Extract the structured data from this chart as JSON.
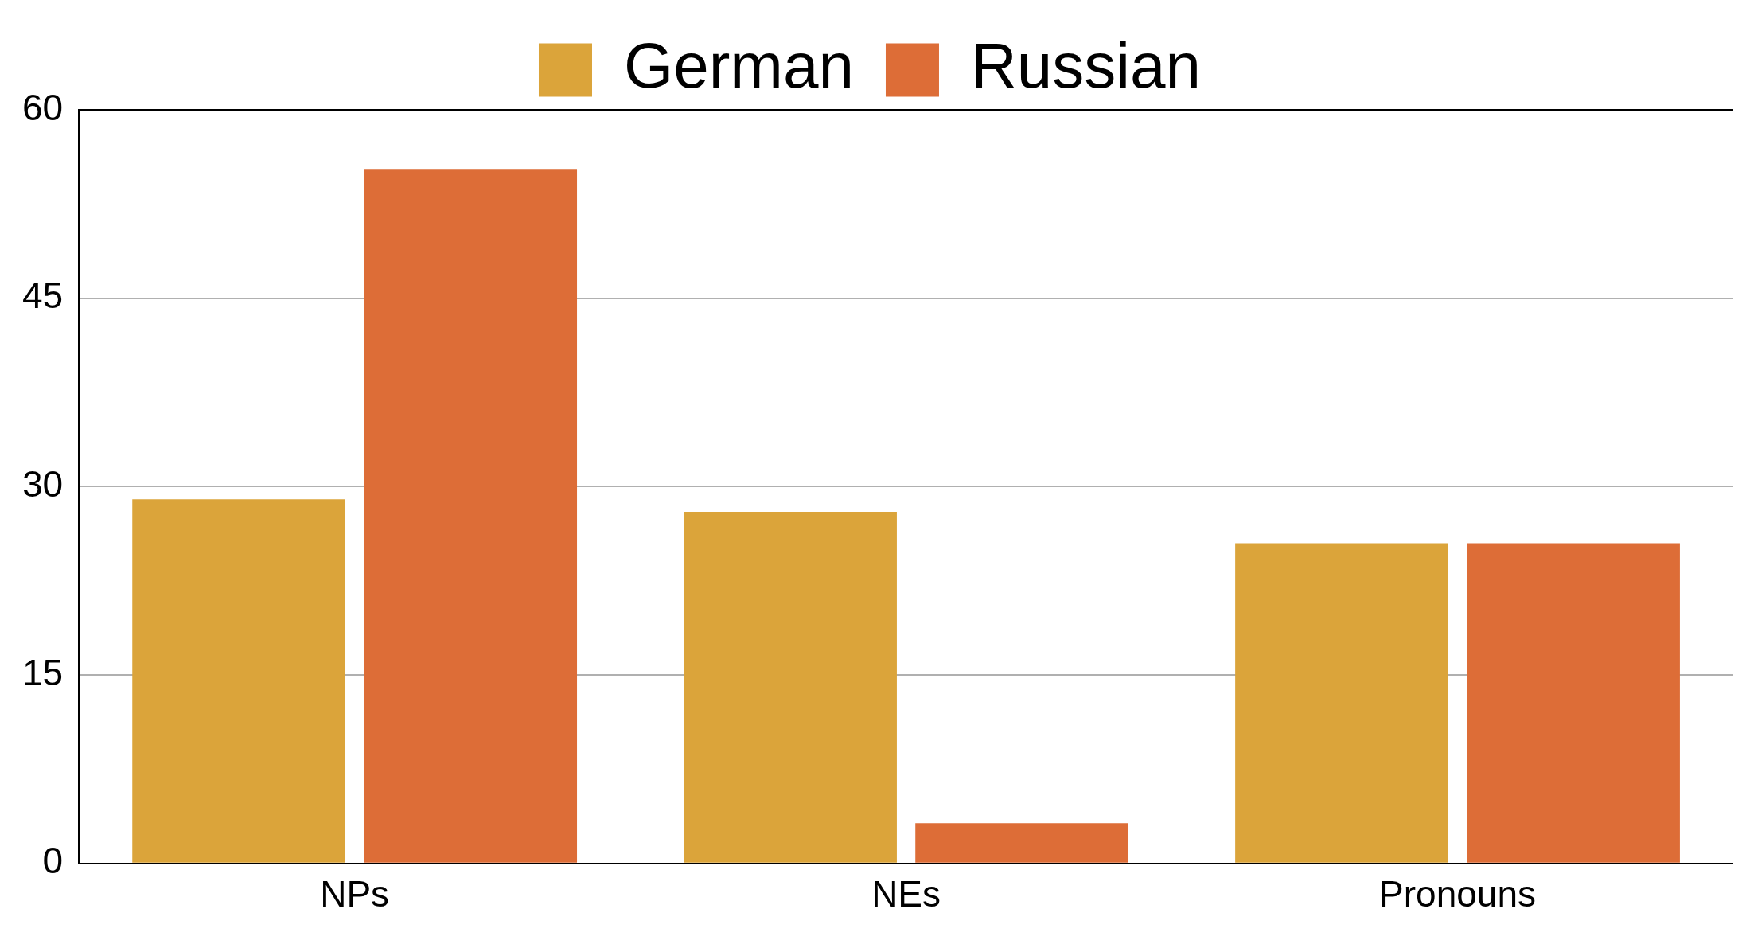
{
  "chart_data": {
    "type": "bar",
    "categories": [
      "NPs",
      "NEs",
      "Pronouns"
    ],
    "series": [
      {
        "name": "German",
        "color": "#dba43a",
        "values": [
          29,
          28,
          25.5
        ]
      },
      {
        "name": "Russian",
        "color": "#dd6d37",
        "values": [
          55.3,
          3.2,
          25.5
        ]
      }
    ],
    "ylim": [
      0,
      60
    ],
    "yticks": [
      0,
      15,
      30,
      45,
      60
    ],
    "grid": "y",
    "legend": "top"
  }
}
